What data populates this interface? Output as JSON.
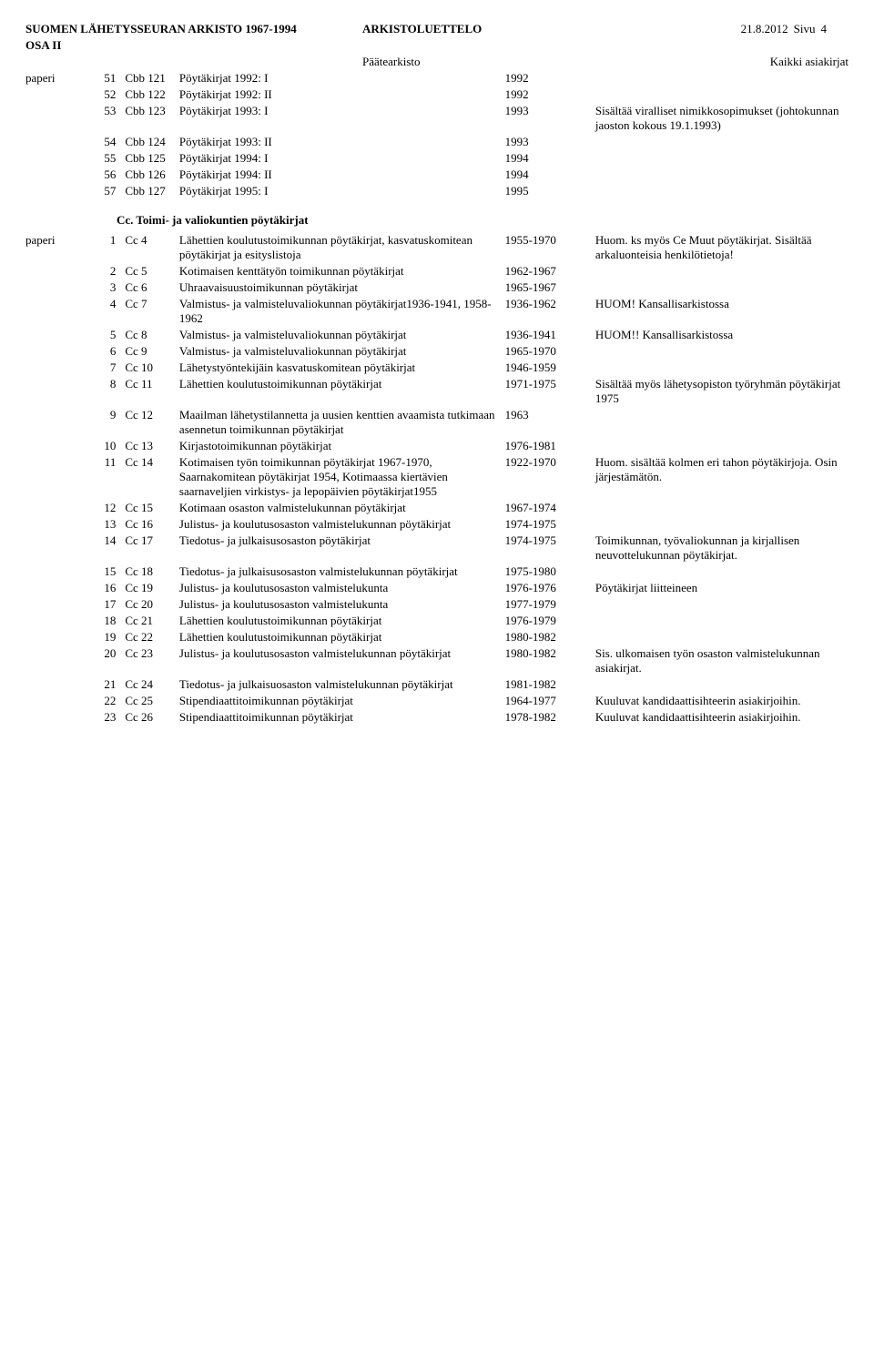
{
  "header": {
    "left": "SUOMEN LÄHETYSSEURAN ARKISTO 1967-1994",
    "center": "ARKISTOLUETTELO",
    "date": "21.8.2012",
    "pageLabel": "Sivu",
    "pageNum": "4",
    "osa": "OSA II"
  },
  "subheader": {
    "center": "Päätearkisto",
    "right": "Kaikki asiakirjat"
  },
  "block1": {
    "material": "paperi",
    "rows": [
      {
        "idx": "51",
        "code": "Cbb 121",
        "title": "Pöytäkirjat 1992: I",
        "year": "1992",
        "note": ""
      },
      {
        "idx": "52",
        "code": "Cbb 122",
        "title": "Pöytäkirjat 1992: II",
        "year": "1992",
        "note": ""
      },
      {
        "idx": "53",
        "code": "Cbb 123",
        "title": "Pöytäkirjat 1993: I",
        "year": "1993",
        "note": "Sisältää viralliset nimikkosopimukset (johtokunnan jaoston kokous 19.1.1993)"
      },
      {
        "idx": "54",
        "code": "Cbb 124",
        "title": "Pöytäkirjat 1993: II",
        "year": "1993",
        "note": ""
      },
      {
        "idx": "55",
        "code": "Cbb 125",
        "title": "Pöytäkirjat 1994: I",
        "year": "1994",
        "note": ""
      },
      {
        "idx": "56",
        "code": "Cbb 126",
        "title": "Pöytäkirjat 1994: II",
        "year": "1994",
        "note": ""
      },
      {
        "idx": "57",
        "code": "Cbb 127",
        "title": "Pöytäkirjat 1995: I",
        "year": "1995",
        "note": ""
      }
    ]
  },
  "sectionTitle": "Cc. Toimi- ja valiokuntien pöytäkirjat",
  "block2": {
    "material": "paperi",
    "rows": [
      {
        "idx": "1",
        "code": "Cc 4",
        "title": "Lähettien koulutustoimikunnan pöytäkirjat, kasvatuskomitean pöytäkirjat ja esityslistoja",
        "year": "1955-1970",
        "note": "Huom. ks myös Ce Muut pöytäkirjat. Sisältää arkaluonteisia henkilötietoja!"
      },
      {
        "idx": "2",
        "code": "Cc 5",
        "title": "Kotimaisen kenttätyön toimikunnan pöytäkirjat",
        "year": "1962-1967",
        "note": ""
      },
      {
        "idx": "3",
        "code": "Cc 6",
        "title": "Uhraavaisuustoimikunnan pöytäkirjat",
        "year": "1965-1967",
        "note": ""
      },
      {
        "idx": "4",
        "code": "Cc 7",
        "title": "Valmistus- ja valmisteluvaliokunnan pöytäkirjat1936-1941, 1958-1962",
        "year": "1936-1962",
        "note": "HUOM! Kansallisarkistossa"
      },
      {
        "idx": "5",
        "code": "Cc 8",
        "title": "Valmistus- ja valmisteluvaliokunnan pöytäkirjat",
        "year": "1936-1941",
        "note": "HUOM!! Kansallisarkistossa"
      },
      {
        "idx": "6",
        "code": "Cc 9",
        "title": "Valmistus- ja valmisteluvaliokunnan pöytäkirjat",
        "year": "1965-1970",
        "note": ""
      },
      {
        "idx": "7",
        "code": "Cc 10",
        "title": "Lähetystyöntekijäin kasvatuskomitean pöytäkirjat",
        "year": "1946-1959",
        "note": ""
      },
      {
        "idx": "8",
        "code": "Cc 11",
        "title": "Lähettien koulutustoimikunnan pöytäkirjat",
        "year": "1971-1975",
        "note": "Sisältää myös lähetysopiston työryhmän pöytäkirjat 1975"
      },
      {
        "idx": "9",
        "code": "Cc 12",
        "title": "Maailman lähetystilannetta ja uusien kenttien avaamista  tutkimaan asennetun toimikunnan pöytäkirjat",
        "year": "1963",
        "note": ""
      },
      {
        "idx": "10",
        "code": "Cc 13",
        "title": "Kirjastotoimikunnan pöytäkirjat",
        "year": "1976-1981",
        "note": ""
      },
      {
        "idx": "11",
        "code": "Cc 14",
        "title": "Kotimaisen työn toimikunnan pöytäkirjat 1967-1970, Saarnakomitean pöytäkirjat 1954, Kotimaassa kiertävien saarnaveljien virkistys- ja lepopäivien pöytäkirjat1955",
        "year": "1922-1970",
        "note": "Huom. sisältää kolmen eri tahon pöytäkirjoja. Osin järjestämätön."
      },
      {
        "idx": "12",
        "code": "Cc 15",
        "title": "Kotimaan osaston valmistelukunnan pöytäkirjat",
        "year": "1967-1974",
        "note": ""
      },
      {
        "idx": "13",
        "code": "Cc 16",
        "title": "Julistus- ja koulutusosaston valmistelukunnan pöytäkirjat",
        "year": "1974-1975",
        "note": ""
      },
      {
        "idx": "14",
        "code": "Cc 17",
        "title": "Tiedotus- ja julkaisusosaston pöytäkirjat",
        "year": "1974-1975",
        "note": "Toimikunnan, työvaliokunnan ja kirjallisen neuvottelukunnan pöytäkirjat."
      },
      {
        "idx": "15",
        "code": "Cc 18",
        "title": "Tiedotus- ja julkaisusosaston valmistelukunnan pöytäkirjat",
        "year": "1975-1980",
        "note": ""
      },
      {
        "idx": "16",
        "code": "Cc 19",
        "title": "Julistus- ja koulutusosaston valmistelukunta",
        "year": "1976-1976",
        "note": "Pöytäkirjat liitteineen"
      },
      {
        "idx": "17",
        "code": "Cc 20",
        "title": "Julistus- ja koulutusosaston valmistelukunta",
        "year": "1977-1979",
        "note": ""
      },
      {
        "idx": "18",
        "code": "Cc 21",
        "title": "Lähettien koulutustoimikunnan pöytäkirjat",
        "year": "1976-1979",
        "note": ""
      },
      {
        "idx": "19",
        "code": "Cc 22",
        "title": "Lähettien koulutustoimikunnan pöytäkirjat",
        "year": "1980-1982",
        "note": ""
      },
      {
        "idx": "20",
        "code": "Cc 23",
        "title": "Julistus- ja koulutusosaston valmistelukunnan pöytäkirjat",
        "year": "1980-1982",
        "note": "Sis. ulkomaisen työn osaston valmistelukunnan asiakirjat."
      },
      {
        "idx": "21",
        "code": "Cc 24",
        "title": "Tiedotus- ja julkaisuosaston valmistelukunnan pöytäkirjat",
        "year": "1981-1982",
        "note": ""
      },
      {
        "idx": "22",
        "code": "Cc 25",
        "title": "Stipendiaattitoimikunnan pöytäkirjat",
        "year": "1964-1977",
        "note": "Kuuluvat kandidaattisihteerin asiakirjoihin."
      },
      {
        "idx": "23",
        "code": "Cc 26",
        "title": "Stipendiaattitoimikunnan pöytäkirjat",
        "year": "1978-1982",
        "note": "Kuuluvat kandidaattisihteerin asiakirjoihin."
      }
    ]
  }
}
